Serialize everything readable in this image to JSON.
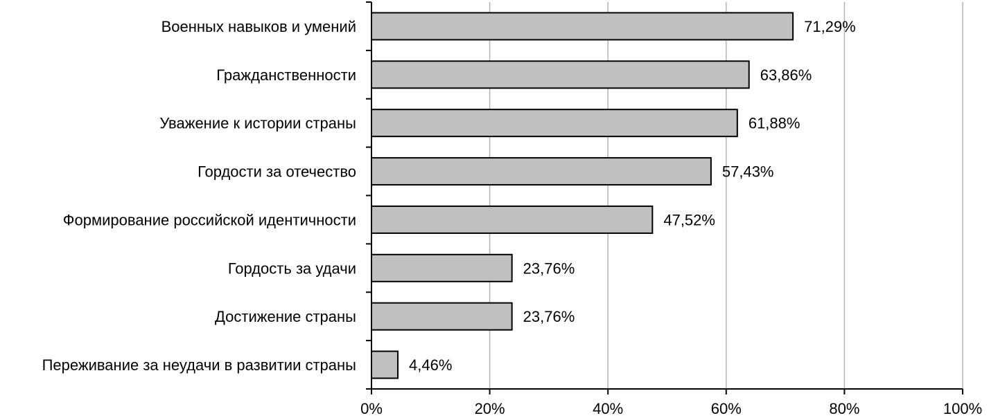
{
  "chart_data": {
    "type": "bar",
    "orientation": "horizontal",
    "categories": [
      "Военных навыков и умений",
      "Гражданственности",
      "Уважение к истории страны",
      "Гордости за отечество",
      "Формирование российской идентичности",
      "Гордость за удачи",
      "Достижение страны",
      "Переживание за неудачи в развитии страны"
    ],
    "values": [
      71.29,
      63.86,
      61.88,
      57.43,
      47.52,
      23.76,
      23.76,
      4.46
    ],
    "value_labels": [
      "71,29%",
      "63,86%",
      "61,88%",
      "57,43%",
      "47,52%",
      "23,76%",
      "23,76%",
      "4,46%"
    ],
    "xlim": [
      0,
      100
    ],
    "x_ticks": [
      0,
      20,
      40,
      60,
      80,
      100
    ],
    "x_tick_labels": [
      "0%",
      "20%",
      "40%",
      "60%",
      "80%",
      "100%"
    ],
    "grid": "vertical",
    "bar_color": "#c0c0c0",
    "bar_edge_color": "#000000",
    "grid_color": "#b3b3b3"
  }
}
